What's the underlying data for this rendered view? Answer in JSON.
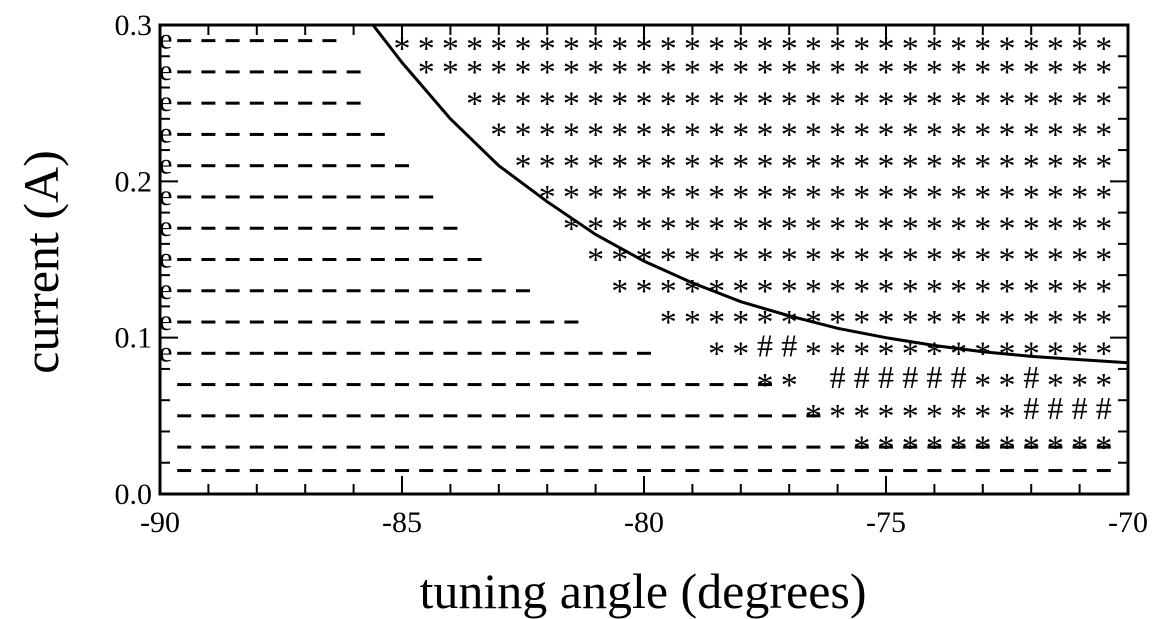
{
  "chart_data": {
    "type": "scatter",
    "title": "",
    "xlabel": "tuning angle (degrees)",
    "ylabel": "current (A)",
    "xlim": [
      -90,
      -70
    ],
    "ylim": [
      0.0,
      0.3
    ],
    "x_ticks": [
      -90,
      -85,
      -80,
      -75,
      -70
    ],
    "x_tick_labels": [
      "-90",
      "-85",
      "-80",
      "-75",
      "-70"
    ],
    "y_ticks": [
      0.0,
      0.1,
      0.2,
      0.3
    ],
    "y_tick_labels": [
      "0.0",
      "0.1",
      "0.2",
      "0.3"
    ],
    "x_minor_step": 1,
    "y_minor_step": 0.02,
    "grid": false,
    "legend": "none",
    "symbol_x_step": 0.5,
    "symbols": {
      "dash": "-",
      "star": "*",
      "hash": "#",
      "e": "e"
    },
    "rows": [
      {
        "y": 0.29,
        "dash": [
          [
            -89.5,
            -86.5
          ]
        ],
        "star": [
          [
            -85.0,
            -70.5
          ]
        ],
        "e": [
          -90.0
        ]
      },
      {
        "y": 0.275,
        "star": [
          [
            -84.5,
            -70.5
          ]
        ]
      },
      {
        "y": 0.27,
        "dash": [
          [
            -89.5,
            -86.0
          ]
        ],
        "e": [
          -90.0
        ]
      },
      {
        "y": 0.255,
        "star": [
          [
            -83.5,
            -70.5
          ]
        ]
      },
      {
        "y": 0.25,
        "dash": [
          [
            -89.5,
            -86.0
          ]
        ],
        "e": [
          -90.0
        ]
      },
      {
        "y": 0.235,
        "star": [
          [
            -83.0,
            -70.5
          ]
        ]
      },
      {
        "y": 0.23,
        "dash": [
          [
            -89.5,
            -85.5
          ]
        ],
        "e": [
          -90.0
        ]
      },
      {
        "y": 0.215,
        "star": [
          [
            -82.5,
            -70.5
          ]
        ]
      },
      {
        "y": 0.21,
        "dash": [
          [
            -89.5,
            -85.0
          ]
        ],
        "e": [
          -90.0
        ]
      },
      {
        "y": 0.195,
        "star": [
          [
            -82.0,
            -70.5
          ]
        ]
      },
      {
        "y": 0.19,
        "dash": [
          [
            -89.5,
            -84.5
          ]
        ],
        "e": [
          -90.0
        ]
      },
      {
        "y": 0.175,
        "star": [
          [
            -81.5,
            -70.5
          ]
        ]
      },
      {
        "y": 0.17,
        "dash": [
          [
            -89.5,
            -84.0
          ]
        ],
        "e": [
          -90.0
        ]
      },
      {
        "y": 0.155,
        "star": [
          [
            -81.0,
            -70.5
          ]
        ]
      },
      {
        "y": 0.15,
        "dash": [
          [
            -89.5,
            -83.5
          ]
        ],
        "e": [
          -90.0
        ]
      },
      {
        "y": 0.135,
        "star": [
          [
            -80.5,
            -70.5
          ]
        ]
      },
      {
        "y": 0.13,
        "dash": [
          [
            -89.5,
            -82.5
          ]
        ],
        "e": [
          -90.0
        ]
      },
      {
        "y": 0.115,
        "star": [
          [
            -79.5,
            -70.5
          ]
        ]
      },
      {
        "y": 0.11,
        "dash": [
          [
            -89.5,
            -81.5
          ]
        ],
        "e": [
          -90.0
        ]
      },
      {
        "y": 0.095,
        "star": [
          [
            -78.5,
            -78.0
          ],
          [
            -76.5,
            -70.5
          ]
        ],
        "hash": [
          [
            -77.5,
            -77.0
          ]
        ]
      },
      {
        "y": 0.09,
        "dash": [
          [
            -89.5,
            -80.0
          ]
        ],
        "e": [
          -90.0
        ]
      },
      {
        "y": 0.075,
        "star": [
          [
            -77.5,
            -77.0
          ],
          [
            -73.0,
            -72.5
          ],
          [
            -71.5,
            -70.5
          ]
        ],
        "hash": [
          [
            -76.0,
            -73.5
          ],
          [
            -72.0,
            -72.0
          ]
        ]
      },
      {
        "y": 0.07,
        "dash": [
          [
            -89.5,
            -77.5
          ]
        ]
      },
      {
        "y": 0.055,
        "star": [
          [
            -76.5,
            -72.5
          ]
        ],
        "hash": [
          [
            -72.0,
            -70.5
          ]
        ]
      },
      {
        "y": 0.05,
        "dash": [
          [
            -89.5,
            -76.5
          ]
        ]
      },
      {
        "y": 0.035,
        "star": [
          [
            -75.5,
            -70.5
          ]
        ]
      },
      {
        "y": 0.03,
        "dash": [
          [
            -89.5,
            -70.5
          ]
        ]
      },
      {
        "y": 0.015,
        "dash": [
          [
            -89.5,
            -70.5
          ]
        ]
      }
    ],
    "boundary_curve": {
      "x": [
        -85.6,
        -85.0,
        -84.0,
        -83.0,
        -82.0,
        -81.0,
        -80.0,
        -79.0,
        -78.0,
        -77.0,
        -76.0,
        -75.0,
        -74.0,
        -73.0,
        -72.0,
        -71.0,
        -70.0
      ],
      "y": [
        0.3,
        0.276,
        0.24,
        0.21,
        0.187,
        0.166,
        0.149,
        0.135,
        0.123,
        0.114,
        0.106,
        0.1,
        0.095,
        0.091,
        0.088,
        0.086,
        0.084
      ]
    }
  }
}
